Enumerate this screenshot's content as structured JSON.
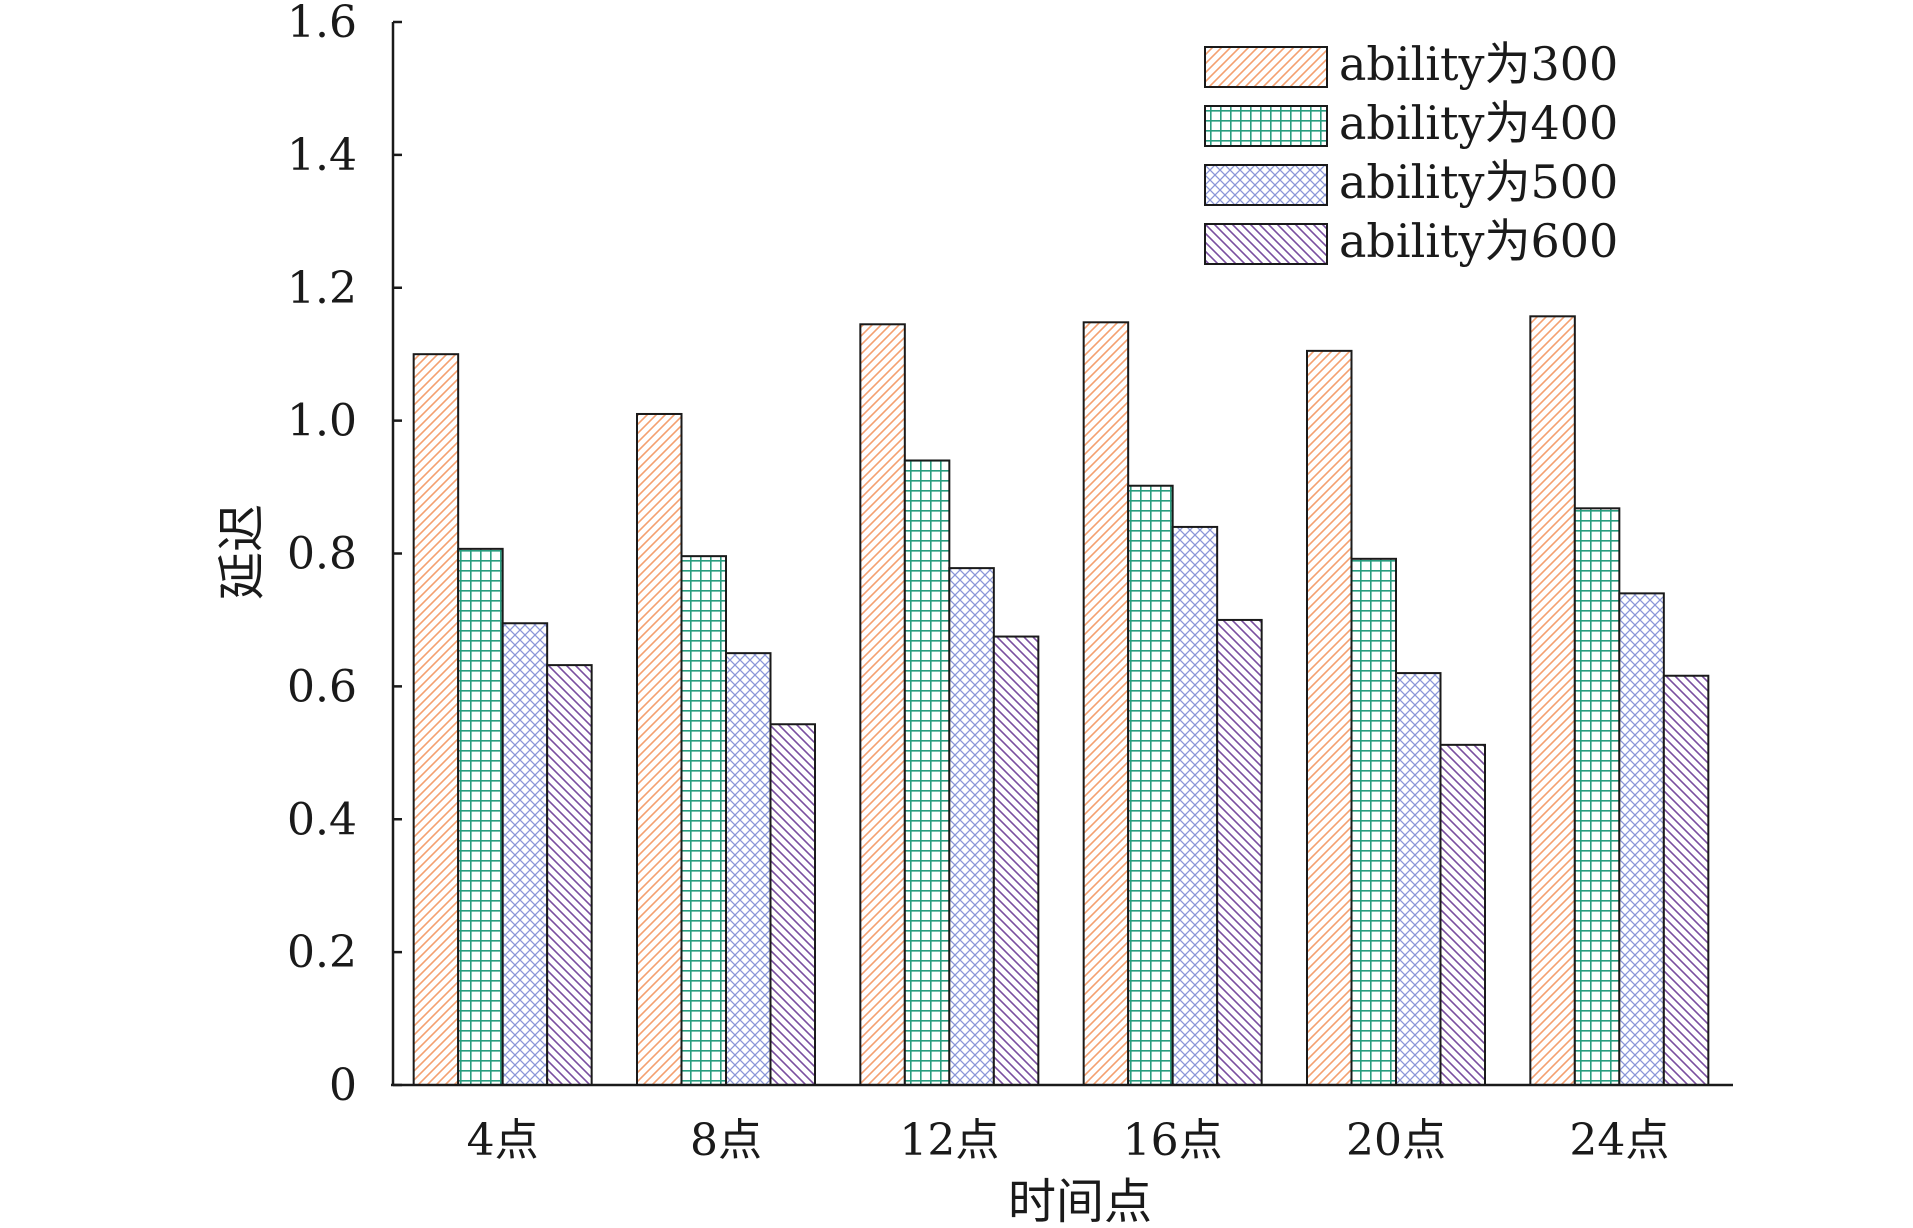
{
  "chart_data": {
    "type": "bar",
    "title": "",
    "xlabel": "时间点",
    "ylabel": "延迟",
    "ylim": [
      0,
      1.6
    ],
    "yticks": [
      "0",
      "0.2",
      "0.4",
      "0.6",
      "0.8",
      "1.0",
      "1.2",
      "1.4",
      "1.6"
    ],
    "categories": [
      "4点",
      "8点",
      "12点",
      "16点",
      "20点",
      "24点"
    ],
    "legend_position": "top-right",
    "grid": false,
    "series": [
      {
        "name": "ability为300",
        "color": "#f4a070",
        "pattern": "forward-diagonal",
        "values": [
          1.1,
          1.01,
          1.145,
          1.148,
          1.105,
          1.157
        ]
      },
      {
        "name": "ability为400",
        "color": "#2a9d7f",
        "pattern": "grid",
        "values": [
          0.807,
          0.796,
          0.94,
          0.902,
          0.792,
          0.868
        ]
      },
      {
        "name": "ability为500",
        "color": "#8a96d8",
        "pattern": "crosshatch",
        "values": [
          0.695,
          0.65,
          0.778,
          0.84,
          0.62,
          0.74
        ]
      },
      {
        "name": "ability为600",
        "color": "#7a4fa0",
        "pattern": "backward-diagonal",
        "values": [
          0.632,
          0.543,
          0.675,
          0.7,
          0.512,
          0.616
        ]
      }
    ]
  }
}
